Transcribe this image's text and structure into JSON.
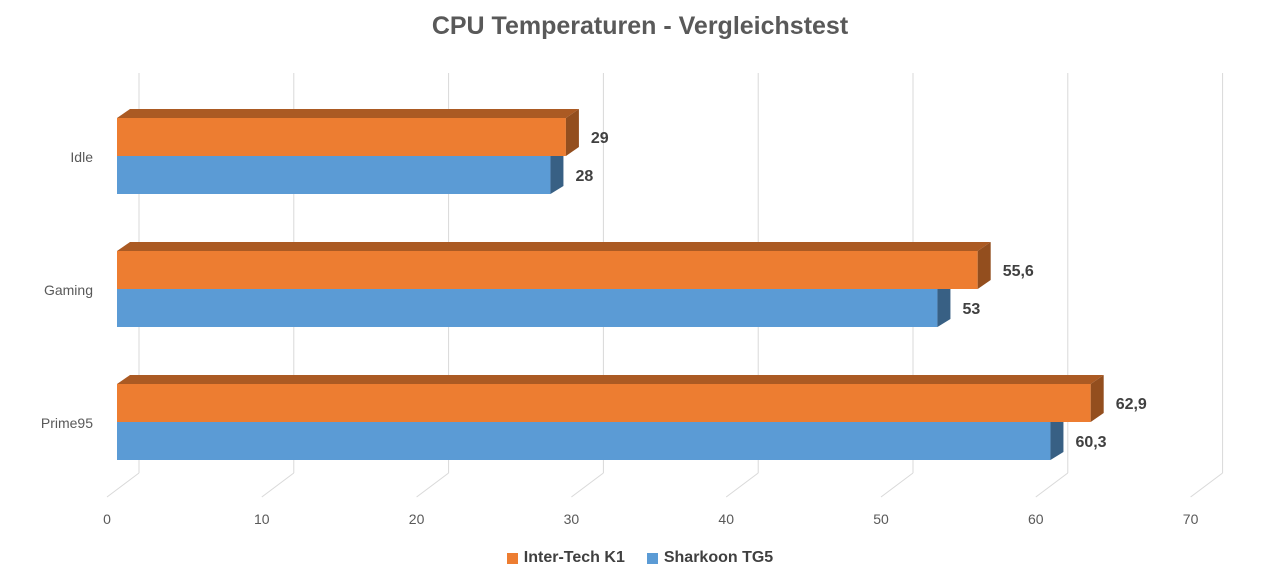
{
  "chart_data": {
    "type": "bar",
    "orientation": "horizontal",
    "three_d": true,
    "title": "CPU Temperaturen - Vergleichstest",
    "categories": [
      "Idle",
      "Gaming",
      "Prime95"
    ],
    "series": [
      {
        "name": "Inter-Tech K1",
        "color": "#ED7D31",
        "values": [
          29,
          55.6,
          62.9
        ],
        "labels": [
          "29",
          "55,6",
          "62,9"
        ]
      },
      {
        "name": "Sharkoon TG5",
        "color": "#5B9BD5",
        "values": [
          28,
          53,
          60.3
        ],
        "labels": [
          "28",
          "53",
          "60,3"
        ]
      }
    ],
    "xlim": [
      0,
      70
    ],
    "xticks": [
      0,
      10,
      20,
      30,
      40,
      50,
      60,
      70
    ],
    "grid": true,
    "legend_position": "bottom"
  }
}
